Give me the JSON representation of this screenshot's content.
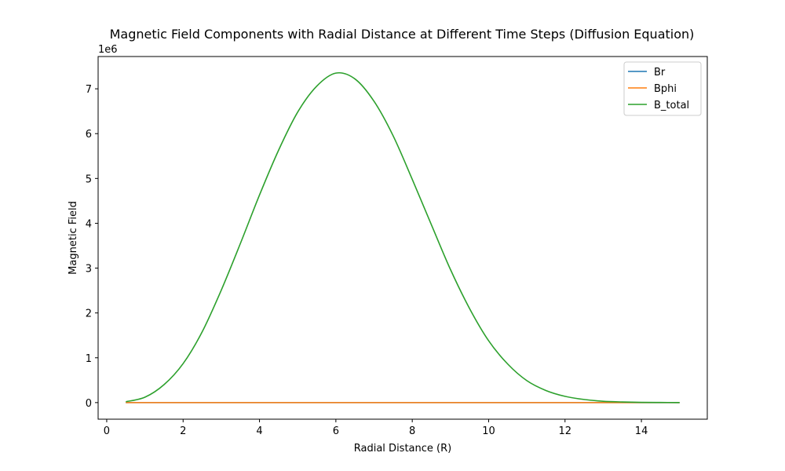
{
  "chart_data": {
    "type": "line",
    "title": "Magnetic Field Components with Radial Distance at Different Time Steps (Diffusion Equation)",
    "xlabel": "Radial Distance (R)",
    "ylabel": "Magnetic Field",
    "y_offset_label": "1e6",
    "xlim": [
      -0.225,
      15.725
    ],
    "ylim": [
      -0.37,
      7.72
    ],
    "y_scale": 1000000,
    "xticks": [
      0,
      2,
      4,
      6,
      8,
      10,
      12,
      14
    ],
    "yticks": [
      0,
      1,
      2,
      3,
      4,
      5,
      6,
      7
    ],
    "grid": false,
    "legend_position": "top-right",
    "series": [
      {
        "name": "Br",
        "color": "#1f77b4",
        "x": [
          0.5,
          15
        ],
        "y": [
          0,
          0
        ]
      },
      {
        "name": "Bphi",
        "color": "#ff7f0e",
        "x": [
          0.5,
          15
        ],
        "y": [
          0,
          0
        ]
      },
      {
        "name": "B_total",
        "color": "#2ca02c",
        "x": [
          0.5,
          1.0,
          1.5,
          2.0,
          2.5,
          3.0,
          3.5,
          4.0,
          4.5,
          5.0,
          5.5,
          6.0,
          6.5,
          7.0,
          7.5,
          8.0,
          8.5,
          9.0,
          9.5,
          10.0,
          10.5,
          11.0,
          11.5,
          12.0,
          12.5,
          13.0,
          13.5,
          14.0,
          14.5,
          15.0
        ],
        "y": [
          0.02,
          0.12,
          0.4,
          0.87,
          1.58,
          2.51,
          3.55,
          4.63,
          5.63,
          6.48,
          7.06,
          7.35,
          7.22,
          6.72,
          5.95,
          4.98,
          3.97,
          2.97,
          2.1,
          1.38,
          0.86,
          0.49,
          0.27,
          0.14,
          0.07,
          0.03,
          0.015,
          0.006,
          0.003,
          0.001
        ]
      }
    ]
  }
}
